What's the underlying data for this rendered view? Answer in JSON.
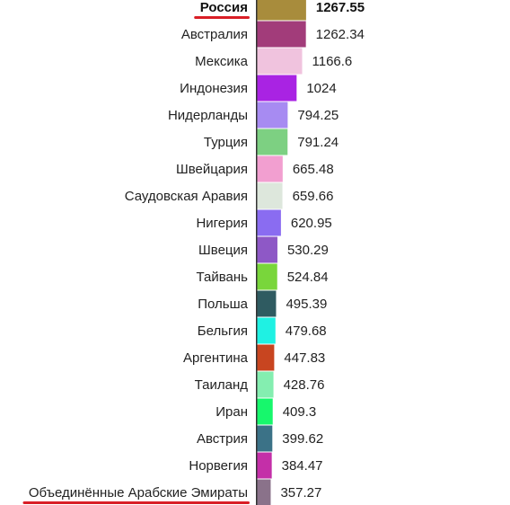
{
  "chart_data": {
    "type": "bar",
    "orientation": "horizontal",
    "categories": [
      "Россия",
      "Австралия",
      "Мексика",
      "Индонезия",
      "Нидерланды",
      "Турция",
      "Швейцария",
      "Саудовская Аравия",
      "Нигерия",
      "Швеция",
      "Тайвань",
      "Польша",
      "Бельгия",
      "Аргентина",
      "Таиланд",
      "Иран",
      "Австрия",
      "Норвегия",
      "Объединённые Арабские Эмираты"
    ],
    "values": [
      1267.55,
      1262.34,
      1166.6,
      1024,
      794.25,
      791.24,
      665.48,
      659.66,
      620.95,
      530.29,
      524.84,
      495.39,
      479.68,
      447.83,
      428.76,
      409.3,
      399.62,
      384.47,
      357.27
    ],
    "value_labels": [
      "1267.55",
      "1262.34",
      "1166.6",
      "1024",
      "794.25",
      "791.24",
      "665.48",
      "659.66",
      "620.95",
      "530.29",
      "524.84",
      "495.39",
      "479.68",
      "447.83",
      "428.76",
      "409.3",
      "399.62",
      "384.47",
      "357.27"
    ],
    "colors": [
      "#a88c3c",
      "#a23c7a",
      "#f0c3de",
      "#a923e3",
      "#a78bf2",
      "#7dd082",
      "#f29fd0",
      "#dde7dc",
      "#8a6cf1",
      "#8e58c6",
      "#79d63b",
      "#2f5b61",
      "#1ff1e3",
      "#c84520",
      "#84eeb0",
      "#17f76c",
      "#3b7287",
      "#c42fa8",
      "#8a728a"
    ],
    "highlighted": [
      "Россия",
      "Объединённые Арабские Эмираты"
    ],
    "bold_entries": [
      "Россия"
    ],
    "underline_color": "#d91e26",
    "title": "",
    "xlabel": "",
    "ylabel": "",
    "grid": false,
    "legend": "none"
  }
}
